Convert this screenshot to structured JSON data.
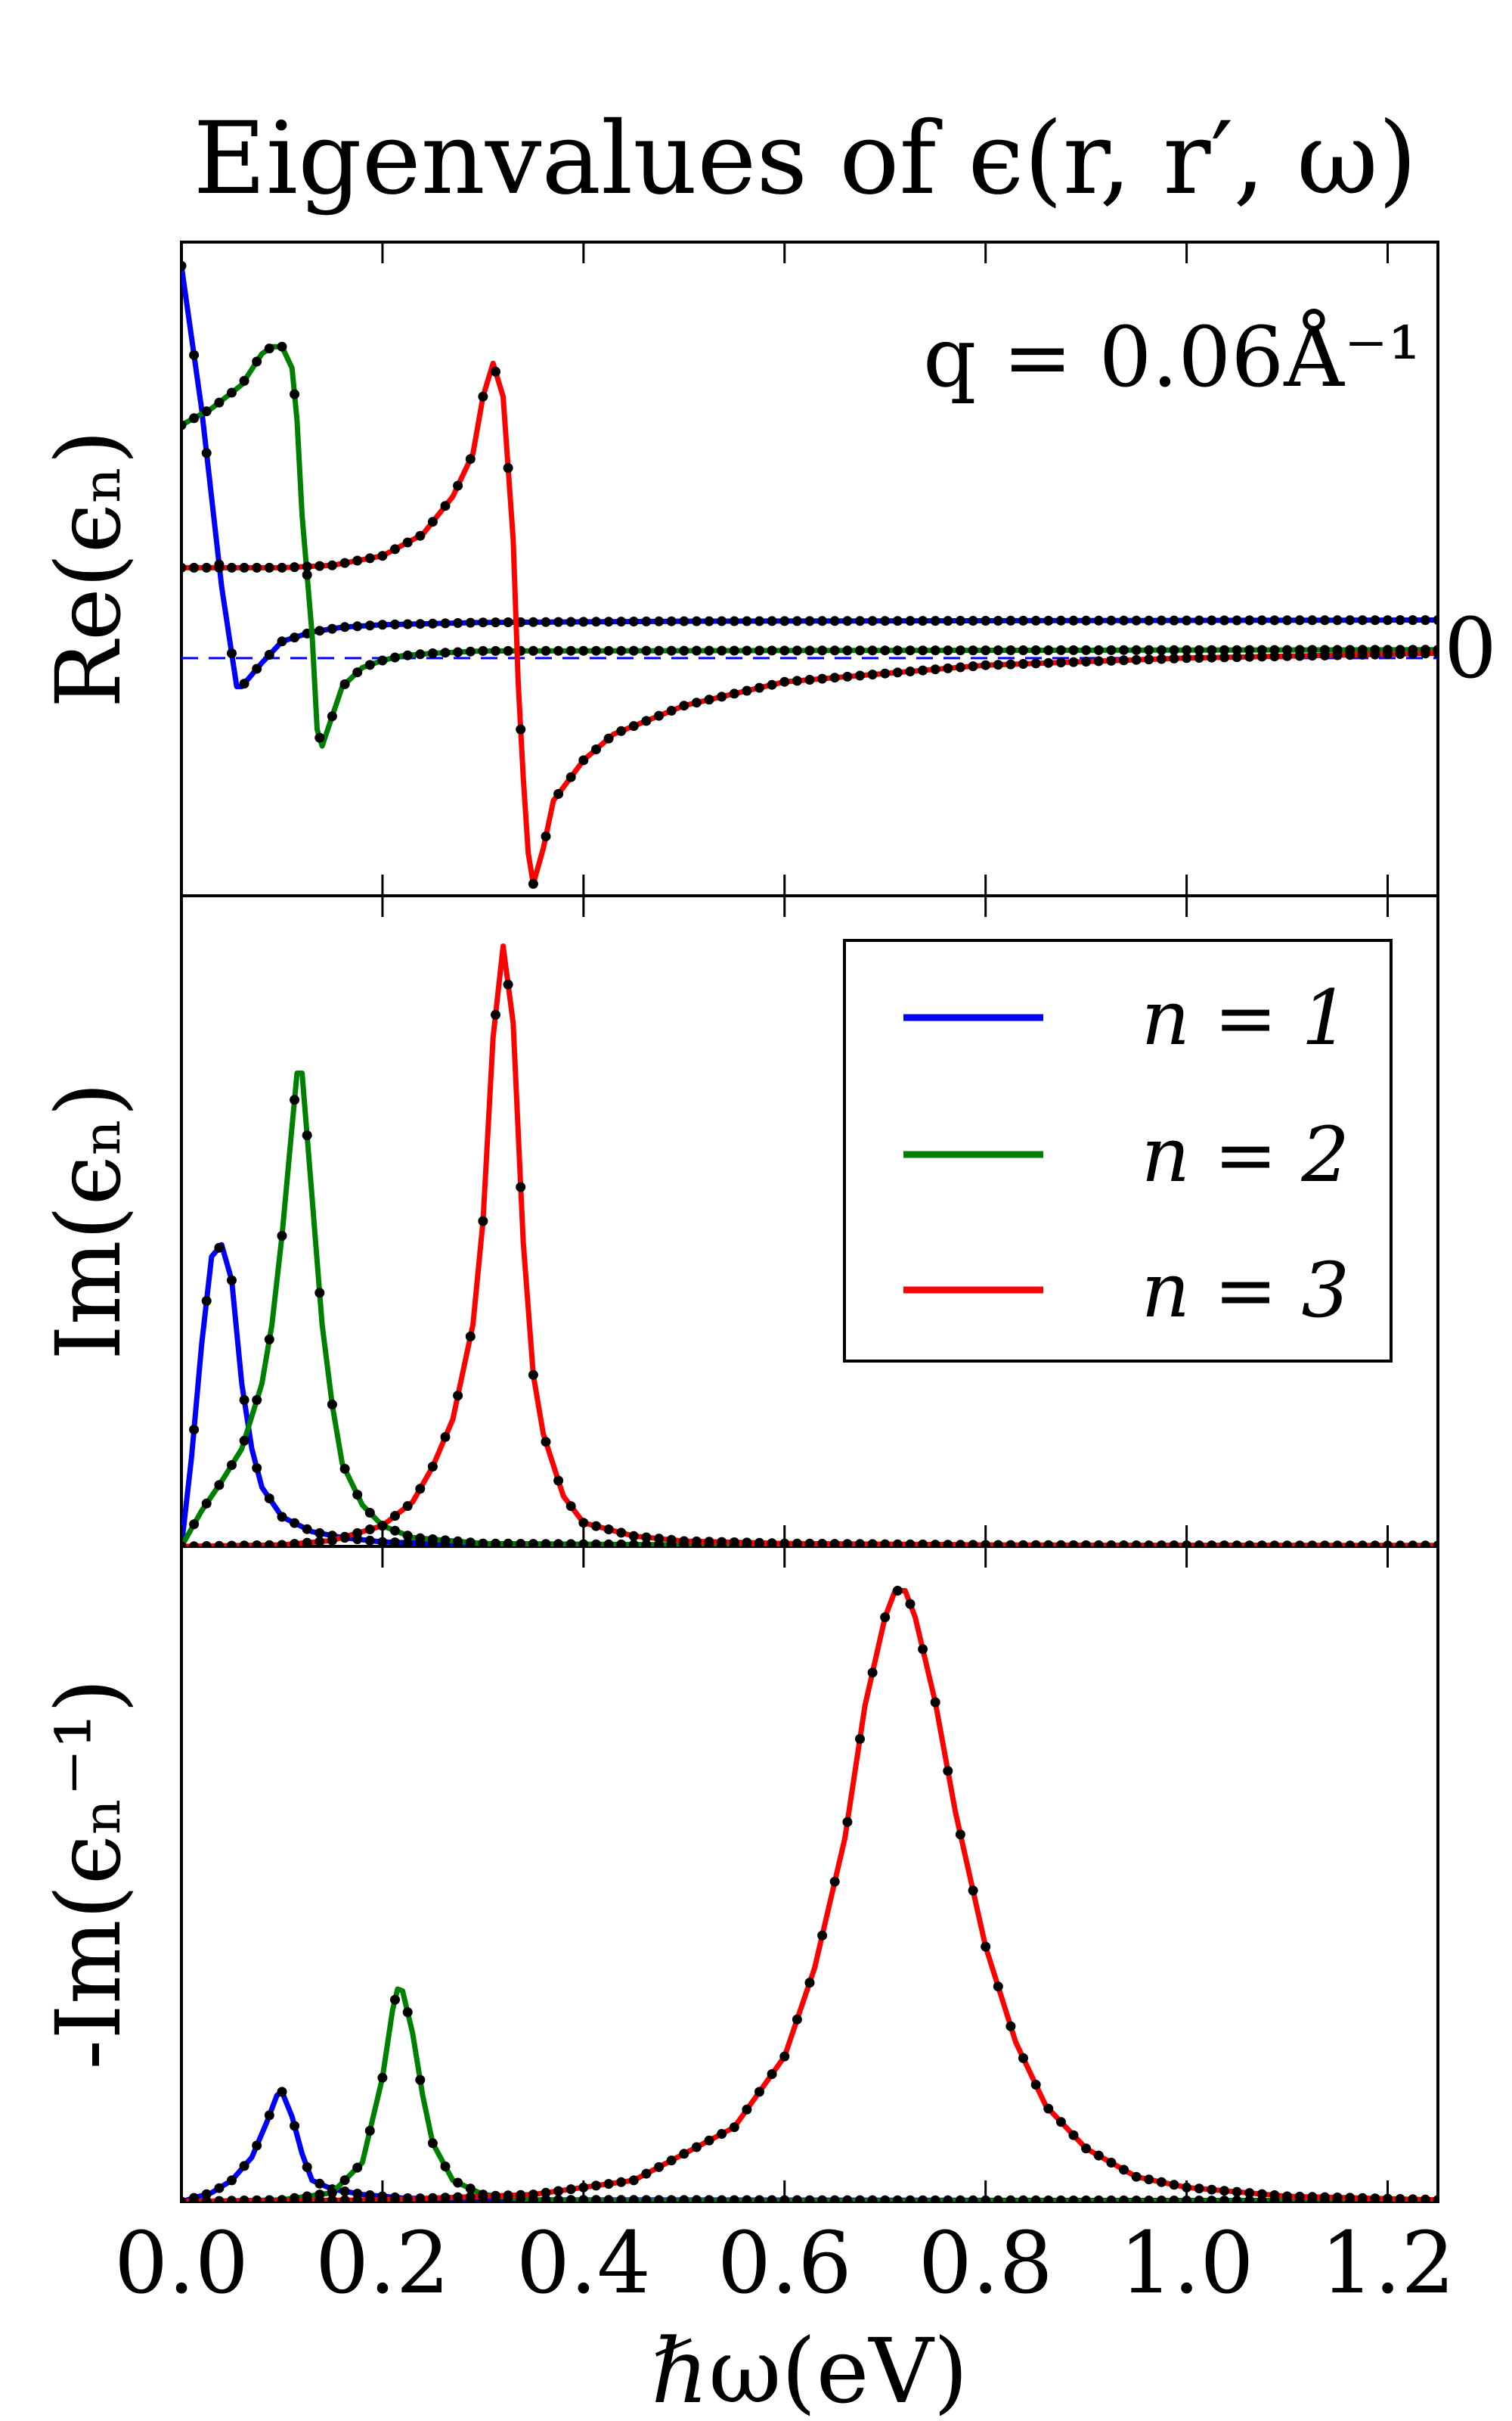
{
  "chart_data": {
    "type": "line",
    "title": "Eigenvalues of ϵ(r, r′, ω)",
    "xlabel": "ℏω(eV)",
    "xlim": [
      0.0,
      1.25
    ],
    "xticks": [
      0.0,
      0.2,
      0.4,
      0.6,
      0.8,
      1.0,
      1.2
    ],
    "xtick_labels": [
      "0.0",
      "0.2",
      "0.4",
      "0.6",
      "0.8",
      "1.0",
      "1.2"
    ],
    "annotation": "q = 0.06Å⁻¹",
    "zero_label": "0",
    "colors": {
      "n1": "#0000ff",
      "n2": "#008000",
      "n3": "#ff0000",
      "markers": "#000000",
      "zero_line": "#0000ff"
    },
    "legend": {
      "location": "upper right of middle panel",
      "entries": [
        {
          "label": "n = 1",
          "color": "#0000ff"
        },
        {
          "label": "n = 2",
          "color": "#008000"
        },
        {
          "label": "n = 3",
          "color": "#ff0000"
        }
      ]
    },
    "panels": [
      {
        "id": "re",
        "ylabel": "Re(ϵₙ)",
        "ylim": [
          -1.0,
          1.75
        ],
        "zero_line": true,
        "series": [
          {
            "name": "n = 1",
            "points": [
              [
                0.0,
                1.65
              ],
              [
                0.02,
                1.05
              ],
              [
                0.04,
                0.3
              ],
              [
                0.055,
                -0.12
              ],
              [
                0.06,
                -0.12
              ],
              [
                0.08,
                -0.02
              ],
              [
                0.1,
                0.07
              ],
              [
                0.13,
                0.11
              ],
              [
                0.16,
                0.13
              ],
              [
                0.2,
                0.14
              ],
              [
                0.3,
                0.15
              ],
              [
                0.5,
                0.155
              ],
              [
                1.25,
                0.16
              ]
            ]
          },
          {
            "name": "n = 2",
            "points": [
              [
                0.0,
                0.98
              ],
              [
                0.03,
                1.05
              ],
              [
                0.06,
                1.15
              ],
              [
                0.08,
                1.28
              ],
              [
                0.09,
                1.31
              ],
              [
                0.1,
                1.31
              ],
              [
                0.11,
                1.22
              ],
              [
                0.115,
                1.0
              ],
              [
                0.12,
                0.6
              ],
              [
                0.13,
                0.1
              ],
              [
                0.135,
                -0.3
              ],
              [
                0.14,
                -0.37
              ],
              [
                0.16,
                -0.12
              ],
              [
                0.18,
                -0.04
              ],
              [
                0.2,
                -0.01
              ],
              [
                0.22,
                0.01
              ],
              [
                0.25,
                0.02
              ],
              [
                0.3,
                0.03
              ],
              [
                1.25,
                0.035
              ]
            ]
          },
          {
            "name": "n = 3",
            "points": [
              [
                0.0,
                0.38
              ],
              [
                0.1,
                0.38
              ],
              [
                0.15,
                0.39
              ],
              [
                0.2,
                0.43
              ],
              [
                0.24,
                0.52
              ],
              [
                0.27,
                0.68
              ],
              [
                0.29,
                0.86
              ],
              [
                0.3,
                1.1
              ],
              [
                0.31,
                1.24
              ],
              [
                0.32,
                1.1
              ],
              [
                0.33,
                0.5
              ],
              [
                0.335,
                -0.1
              ],
              [
                0.34,
                -0.5
              ],
              [
                0.345,
                -0.82
              ],
              [
                0.35,
                -0.95
              ],
              [
                0.36,
                -0.8
              ],
              [
                0.37,
                -0.6
              ],
              [
                0.4,
                -0.43
              ],
              [
                0.43,
                -0.32
              ],
              [
                0.5,
                -0.2
              ],
              [
                0.6,
                -0.1
              ],
              [
                0.8,
                -0.03
              ],
              [
                1.0,
                0.0
              ],
              [
                1.25,
                0.02
              ]
            ]
          }
        ]
      },
      {
        "id": "im",
        "ylabel": "Im(ϵₙ)",
        "ylim": [
          0.0,
          2.2
        ],
        "series": [
          {
            "name": "n = 1",
            "points": [
              [
                0.0,
                0.0
              ],
              [
                0.01,
                0.3
              ],
              [
                0.02,
                0.68
              ],
              [
                0.03,
                0.98
              ],
              [
                0.04,
                1.02
              ],
              [
                0.05,
                0.9
              ],
              [
                0.06,
                0.55
              ],
              [
                0.07,
                0.33
              ],
              [
                0.08,
                0.2
              ],
              [
                0.1,
                0.1
              ],
              [
                0.13,
                0.05
              ],
              [
                0.16,
                0.03
              ],
              [
                0.2,
                0.015
              ],
              [
                0.25,
                0.01
              ],
              [
                0.35,
                0.005
              ],
              [
                1.25,
                0.003
              ]
            ]
          },
          {
            "name": "n = 2",
            "points": [
              [
                0.0,
                0.0
              ],
              [
                0.02,
                0.12
              ],
              [
                0.04,
                0.22
              ],
              [
                0.06,
                0.33
              ],
              [
                0.08,
                0.55
              ],
              [
                0.09,
                0.75
              ],
              [
                0.1,
                1.05
              ],
              [
                0.11,
                1.42
              ],
              [
                0.115,
                1.6
              ],
              [
                0.12,
                1.6
              ],
              [
                0.13,
                1.18
              ],
              [
                0.14,
                0.75
              ],
              [
                0.15,
                0.48
              ],
              [
                0.16,
                0.28
              ],
              [
                0.18,
                0.14
              ],
              [
                0.2,
                0.07
              ],
              [
                0.23,
                0.03
              ],
              [
                0.3,
                0.01
              ],
              [
                0.5,
                0.005
              ],
              [
                1.25,
                0.002
              ]
            ]
          },
          {
            "name": "n = 3",
            "points": [
              [
                0.0,
                0.0
              ],
              [
                0.1,
                0.005
              ],
              [
                0.15,
                0.02
              ],
              [
                0.2,
                0.07
              ],
              [
                0.23,
                0.15
              ],
              [
                0.25,
                0.27
              ],
              [
                0.27,
                0.43
              ],
              [
                0.29,
                0.75
              ],
              [
                0.3,
                1.1
              ],
              [
                0.31,
                1.72
              ],
              [
                0.32,
                2.03
              ],
              [
                0.33,
                1.77
              ],
              [
                0.34,
                1.03
              ],
              [
                0.35,
                0.58
              ],
              [
                0.36,
                0.38
              ],
              [
                0.38,
                0.17
              ],
              [
                0.4,
                0.08
              ],
              [
                0.45,
                0.035
              ],
              [
                0.5,
                0.018
              ],
              [
                0.6,
                0.01
              ],
              [
                0.8,
                0.005
              ],
              [
                1.0,
                0.003
              ],
              [
                1.25,
                0.002
              ]
            ]
          }
        ]
      },
      {
        "id": "loss",
        "ylabel": "-Im(ϵₙ⁻¹)",
        "ylim": [
          0.0,
          3.7
        ],
        "series": [
          {
            "name": "n = 1",
            "points": [
              [
                0.0,
                0.0
              ],
              [
                0.03,
                0.05
              ],
              [
                0.05,
                0.12
              ],
              [
                0.07,
                0.25
              ],
              [
                0.085,
                0.45
              ],
              [
                0.095,
                0.6
              ],
              [
                0.1,
                0.62
              ],
              [
                0.11,
                0.48
              ],
              [
                0.12,
                0.27
              ],
              [
                0.13,
                0.12
              ],
              [
                0.15,
                0.07
              ],
              [
                0.18,
                0.04
              ],
              [
                0.22,
                0.02
              ],
              [
                0.3,
                0.01
              ],
              [
                1.25,
                0.005
              ]
            ]
          },
          {
            "name": "n = 2",
            "points": [
              [
                0.0,
                0.0
              ],
              [
                0.1,
                0.01
              ],
              [
                0.15,
                0.05
              ],
              [
                0.18,
                0.22
              ],
              [
                0.2,
                0.7
              ],
              [
                0.21,
                1.08
              ],
              [
                0.215,
                1.2
              ],
              [
                0.22,
                1.19
              ],
              [
                0.23,
                0.95
              ],
              [
                0.24,
                0.6
              ],
              [
                0.25,
                0.33
              ],
              [
                0.27,
                0.12
              ],
              [
                0.3,
                0.04
              ],
              [
                0.35,
                0.01
              ],
              [
                0.5,
                0.005
              ],
              [
                1.25,
                0.002
              ]
            ]
          },
          {
            "name": "n = 3",
            "points": [
              [
                0.0,
                0.0
              ],
              [
                0.2,
                0.01
              ],
              [
                0.35,
                0.04
              ],
              [
                0.45,
                0.12
              ],
              [
                0.55,
                0.42
              ],
              [
                0.6,
                0.82
              ],
              [
                0.63,
                1.32
              ],
              [
                0.66,
                2.05
              ],
              [
                0.68,
                2.8
              ],
              [
                0.7,
                3.3
              ],
              [
                0.71,
                3.45
              ],
              [
                0.72,
                3.45
              ],
              [
                0.73,
                3.3
              ],
              [
                0.75,
                2.82
              ],
              [
                0.77,
                2.2
              ],
              [
                0.8,
                1.44
              ],
              [
                0.83,
                0.9
              ],
              [
                0.86,
                0.54
              ],
              [
                0.9,
                0.3
              ],
              [
                0.95,
                0.14
              ],
              [
                1.0,
                0.08
              ],
              [
                1.1,
                0.03
              ],
              [
                1.25,
                0.01
              ]
            ]
          }
        ]
      }
    ]
  }
}
